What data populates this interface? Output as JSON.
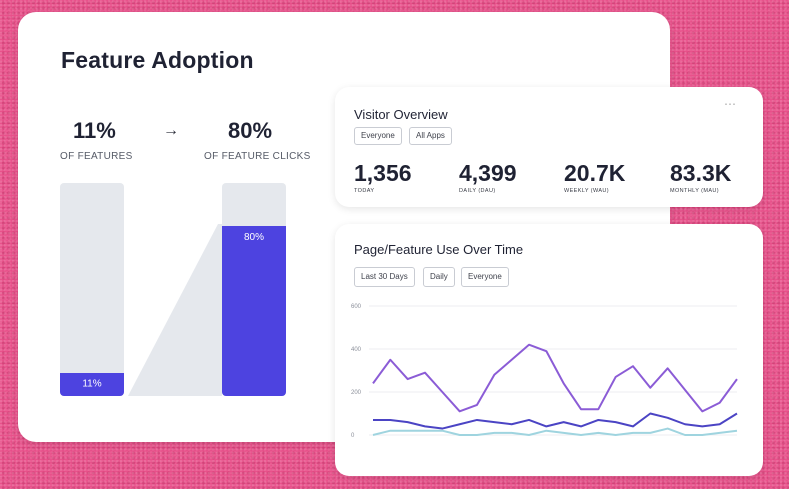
{
  "feature_adoption": {
    "title": "Feature Adoption",
    "left_stat": {
      "value": "11%",
      "label": "OF FEATURES",
      "bar_label": "11%",
      "fraction": 0.11
    },
    "arrow": "→",
    "right_stat": {
      "value": "80%",
      "label": "OF FEATURE CLICKS",
      "bar_label": "80%",
      "fraction": 0.8
    },
    "colors": {
      "accent": "#4d43e0",
      "track": "#e5e8ed"
    }
  },
  "visitor_overview": {
    "title": "Visitor Overview",
    "menu_icon": "⋯",
    "filters": [
      "Everyone",
      "All Apps"
    ],
    "metrics": [
      {
        "value": "1,356",
        "label": "TODAY"
      },
      {
        "value": "4,399",
        "label": "DAILY (DAU)"
      },
      {
        "value": "20.7K",
        "label": "WEEKLY (WAU)"
      },
      {
        "value": "83.3K",
        "label": "MONTHLY (MAU)"
      }
    ]
  },
  "page_feature_use": {
    "title": "Page/Feature Use Over Time",
    "filters": [
      "Last 30 Days",
      "Daily",
      "Everyone"
    ]
  },
  "chart_data": {
    "type": "line",
    "x": [
      1,
      2,
      3,
      4,
      5,
      6,
      7,
      8,
      9,
      10,
      11,
      12,
      13,
      14,
      15,
      16,
      17,
      18,
      19,
      20,
      21,
      22
    ],
    "ylim": [
      0,
      600
    ],
    "yticks": [
      "600",
      "400",
      "200",
      "0"
    ],
    "grid": true,
    "series": [
      {
        "color": "#8b5cd6",
        "values": [
          240,
          350,
          260,
          290,
          200,
          110,
          140,
          280,
          350,
          420,
          390,
          240,
          120,
          120,
          270,
          320,
          220,
          310,
          210,
          110,
          150,
          260
        ]
      },
      {
        "color": "#4b44c4",
        "values": [
          70,
          70,
          60,
          40,
          30,
          50,
          70,
          60,
          50,
          70,
          40,
          60,
          40,
          70,
          60,
          40,
          100,
          80,
          50,
          40,
          50,
          100
        ]
      },
      {
        "color": "#9fd4df",
        "values": [
          0,
          20,
          20,
          20,
          20,
          0,
          0,
          10,
          10,
          0,
          20,
          10,
          0,
          10,
          0,
          10,
          10,
          30,
          0,
          0,
          10,
          20
        ]
      }
    ]
  }
}
